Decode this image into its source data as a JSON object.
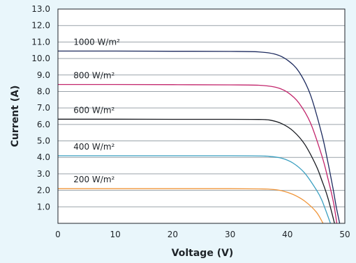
{
  "chart_data": {
    "type": "line",
    "title": "",
    "xlabel": "Voltage (V)",
    "ylabel": "Current (A)",
    "xlim": [
      0,
      50
    ],
    "ylim": [
      0,
      13
    ],
    "x_ticks": [
      "0",
      "10",
      "20",
      "30",
      "40",
      "50"
    ],
    "y_ticks": [
      "1.0",
      "2.0",
      "3.0",
      "4.0",
      "5.0",
      "6.0",
      "7.0",
      "8.0",
      "9.0",
      "10.0",
      "11.0",
      "12.0",
      "13.0"
    ],
    "grid": "horizontal",
    "series": [
      {
        "name": "1000 W/m²",
        "color": "#1c2a5e",
        "x": [
          0,
          10,
          20,
          30,
          35,
          38,
          40,
          42,
          44,
          46,
          47,
          48,
          48.5,
          49.1
        ],
        "y": [
          10.45,
          10.45,
          10.44,
          10.43,
          10.4,
          10.25,
          9.9,
          9.2,
          7.8,
          5.4,
          3.8,
          2.0,
          1.0,
          0
        ]
      },
      {
        "name": "800 W/m²",
        "color": "#c2246b",
        "x": [
          0,
          10,
          20,
          30,
          35,
          38,
          40,
          42,
          44,
          46,
          47,
          48,
          48.6
        ],
        "y": [
          8.42,
          8.42,
          8.41,
          8.4,
          8.38,
          8.25,
          7.95,
          7.3,
          6.1,
          4.1,
          2.8,
          1.3,
          0
        ]
      },
      {
        "name": "600 W/m²",
        "color": "#17191f",
        "x": [
          0,
          10,
          20,
          30,
          35,
          37,
          39,
          41,
          43,
          45,
          46,
          47,
          48.2
        ],
        "y": [
          6.32,
          6.32,
          6.31,
          6.31,
          6.3,
          6.26,
          6.05,
          5.6,
          4.8,
          3.5,
          2.6,
          1.6,
          0
        ]
      },
      {
        "name": "400 W/m²",
        "color": "#3a9fc0",
        "x": [
          0,
          10,
          20,
          30,
          35,
          37,
          39,
          41,
          43,
          45,
          46,
          47.5
        ],
        "y": [
          4.1,
          4.1,
          4.1,
          4.1,
          4.09,
          4.06,
          3.95,
          3.65,
          3.05,
          2.05,
          1.4,
          0
        ]
      },
      {
        "name": "200 W/m²",
        "color": "#f0963a",
        "x": [
          0,
          10,
          20,
          30,
          35,
          37,
          39,
          41,
          43,
          45,
          46.2
        ],
        "y": [
          2.1,
          2.1,
          2.1,
          2.1,
          2.09,
          2.07,
          1.98,
          1.75,
          1.35,
          0.7,
          0
        ]
      }
    ]
  }
}
